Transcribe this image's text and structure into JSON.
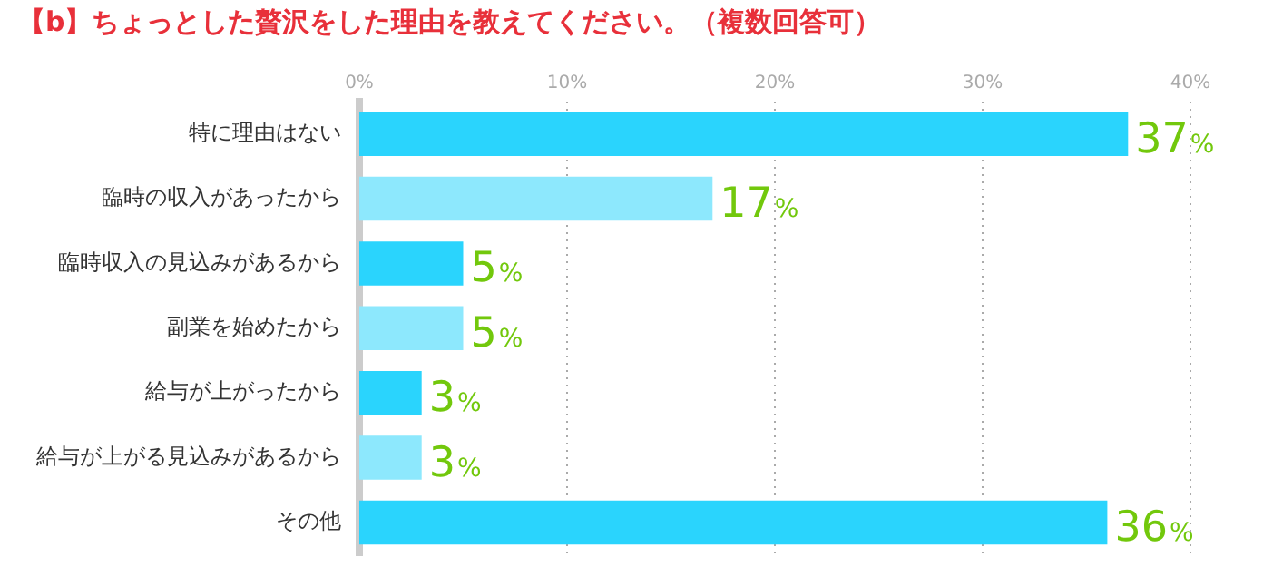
{
  "chart_data": {
    "type": "bar",
    "orientation": "horizontal",
    "title": "【b】ちょっとした贅沢をした理由を教えてください。（複数回答可）",
    "categories": [
      "特に理由はない",
      "臨時の収入があったから",
      "臨時収入の見込みがあるから",
      "副業を始めたから",
      "給与が上がったから",
      "給与が上がる見込みがあるから",
      "その他"
    ],
    "values": [
      37,
      17,
      5,
      5,
      3,
      3,
      36
    ],
    "colors": [
      "#2ad4fd",
      "#8de8fd",
      "#2ad4fd",
      "#8de8fd",
      "#2ad4fd",
      "#8de8fd",
      "#2ad4fd"
    ],
    "value_labels": [
      "37%",
      "17%",
      "5%",
      "5%",
      "3%",
      "3%",
      "36%"
    ],
    "xlim": [
      0,
      40
    ],
    "xticks": [
      {
        "value": 0,
        "label": "0%"
      },
      {
        "value": 10,
        "label": "10%"
      },
      {
        "value": 20,
        "label": "20%"
      },
      {
        "value": 30,
        "label": "30%"
      },
      {
        "value": 40,
        "label": "40%"
      }
    ],
    "grid": "x",
    "legend": false
  }
}
